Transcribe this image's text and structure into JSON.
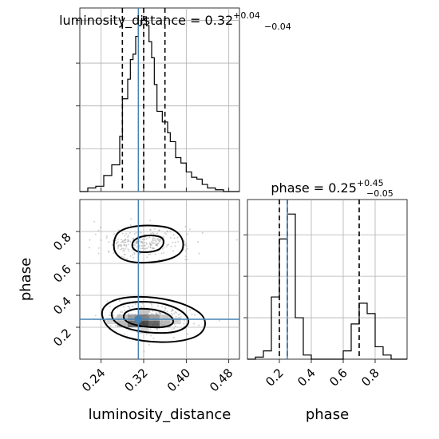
{
  "chart_data": {
    "type": "corner",
    "parameters": [
      "luminosity_distance",
      "phase"
    ],
    "truth": {
      "luminosity_distance": 0.31,
      "phase": 0.25
    },
    "panels": [
      {
        "id": "hist-luminosity_distance",
        "type": "histogram",
        "parameter": "luminosity_distance",
        "title": {
          "prefix": "luminosity_distance = ",
          "value": "0.32",
          "plus": "+0.04",
          "minus": "−0.04"
        },
        "xlim": [
          0.2,
          0.5
        ],
        "xticks": [
          0.24,
          0.32,
          0.4,
          0.48
        ],
        "bin_edges": [
          0.2,
          0.215,
          0.23,
          0.245,
          0.26,
          0.275,
          0.28,
          0.29,
          0.295,
          0.3,
          0.305,
          0.31,
          0.315,
          0.32,
          0.325,
          0.33,
          0.335,
          0.34,
          0.345,
          0.355,
          0.365,
          0.37,
          0.38,
          0.39,
          0.4,
          0.41,
          0.42,
          0.43,
          0.44,
          0.455,
          0.47,
          0.48,
          0.5
        ],
        "counts": [
          0,
          2,
          3,
          9,
          15,
          31,
          52,
          63,
          74,
          77,
          87,
          93,
          96,
          98,
          93,
          84,
          75,
          60,
          45,
          39,
          33,
          28,
          19,
          16,
          11,
          8,
          7,
          4,
          2,
          1,
          0,
          0
        ],
        "quantiles": [
          0.28,
          0.32,
          0.36
        ]
      },
      {
        "id": "hist-phase",
        "type": "histogram",
        "parameter": "phase",
        "title": {
          "prefix": "phase = ",
          "value": "0.25",
          "plus": "+0.45",
          "minus": "−0.05"
        },
        "xlim": [
          0.0,
          1.0
        ],
        "xticks": [
          0.2,
          0.4,
          0.6,
          0.8
        ],
        "bin_edges": [
          0,
          0.05,
          0.1,
          0.15,
          0.2,
          0.25,
          0.3,
          0.35,
          0.4,
          0.45,
          0.5,
          0.55,
          0.6,
          0.65,
          0.7,
          0.75,
          0.8,
          0.85,
          0.9,
          0.95,
          1.0
        ],
        "counts": [
          0,
          1,
          4,
          30,
          58,
          70,
          20,
          2,
          0,
          0,
          0,
          0,
          4,
          17,
          27,
          22,
          6,
          2,
          0,
          0
        ],
        "quantiles": [
          0.2,
          0.25,
          0.7
        ]
      },
      {
        "id": "joint",
        "type": "2d-density",
        "x": "luminosity_distance",
        "y": "phase",
        "xlim": [
          0.2,
          0.5
        ],
        "ylim": [
          0.0,
          1.0
        ],
        "xticks": [
          0.24,
          0.32,
          0.4,
          0.48
        ],
        "yticks": [
          0.2,
          0.4,
          0.6,
          0.8
        ],
        "modes": [
          {
            "center": [
              0.32,
              0.73
            ],
            "sigma": [
              0.045,
              0.045
            ]
          },
          {
            "center": [
              0.33,
              0.25
            ],
            "sigma": [
              0.042,
              0.05
            ]
          }
        ]
      }
    ],
    "xlabel": [
      "luminosity_distance",
      "phase"
    ],
    "ylabel": [
      "",
      "phase"
    ],
    "grid": true
  }
}
